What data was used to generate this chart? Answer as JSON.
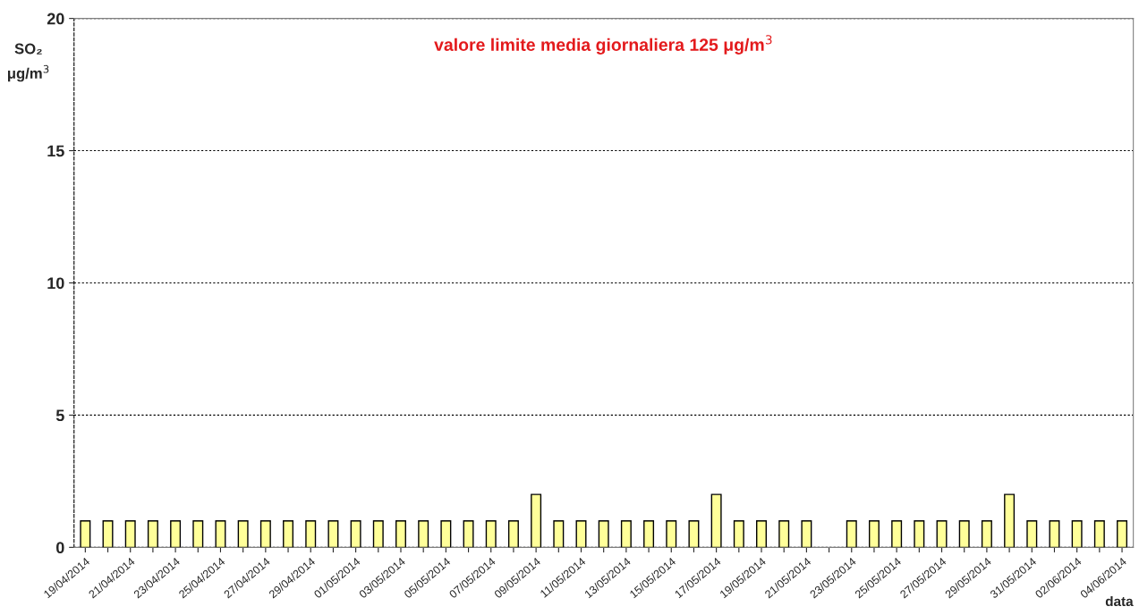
{
  "chart_data": {
    "type": "bar",
    "categories": [
      "19/04/2014",
      null,
      "21/04/2014",
      null,
      "23/04/2014",
      null,
      "25/04/2014",
      null,
      "27/04/2014",
      null,
      "29/04/2014",
      null,
      "01/05/2014",
      null,
      "03/05/2014",
      null,
      "05/05/2014",
      null,
      "07/05/2014",
      null,
      "09/05/2014",
      null,
      "11/05/2014",
      null,
      "13/05/2014",
      null,
      "15/05/2014",
      null,
      "17/05/2014",
      null,
      "19/05/2014",
      null,
      "21/05/2014",
      null,
      "23/05/2014",
      null,
      "25/05/2014",
      null,
      "27/05/2014",
      null,
      "29/05/2014",
      null,
      "31/05/2014",
      null,
      "02/06/2014",
      null,
      "04/06/2014"
    ],
    "values": [
      1,
      1,
      1,
      1,
      1,
      1,
      1,
      1,
      1,
      1,
      1,
      1,
      1,
      1,
      1,
      1,
      1,
      1,
      1,
      1,
      2,
      1,
      1,
      1,
      1,
      1,
      1,
      1,
      2,
      1,
      1,
      1,
      1,
      null,
      1,
      1,
      1,
      1,
      1,
      1,
      1,
      2,
      1,
      1,
      1,
      1,
      1
    ],
    "color": "#ffff99",
    "ylabel": "SO₂\nμg/m$^{3}$",
    "xlabel": "data",
    "annotations": [
      "valore limite media giornaliera 125 μg/m$^{3}$"
    ],
    "ylim": [
      0,
      20
    ],
    "yticks": [
      0,
      5,
      10,
      15,
      20
    ],
    "grid": "y",
    "legend": false
  }
}
